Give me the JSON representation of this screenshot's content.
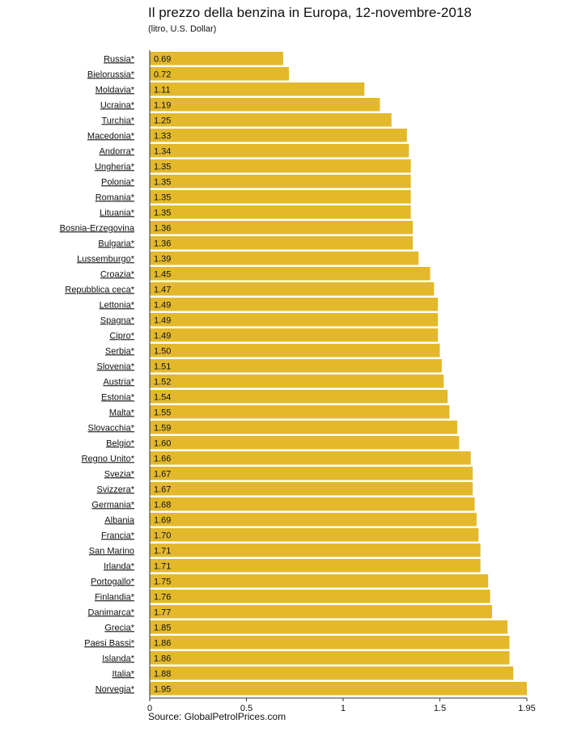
{
  "chart_data": {
    "type": "bar",
    "orientation": "horizontal",
    "title": "Il prezzo della benzina in Europa, 12-novembre-2018",
    "subtitle": "(litro, U.S. Dollar)",
    "source": "Source: GlobalPetrolPrices.com",
    "xlim": [
      0,
      1.95
    ],
    "ticks": [
      0,
      0.5,
      1,
      1.5,
      1.95
    ],
    "tick_labels": [
      "0",
      "0.5",
      "1",
      "1.5",
      "1.95"
    ],
    "bar_color": "#e3b92b",
    "categories": [
      "Russia*",
      "Bielorussia*",
      "Moldavia*",
      "Ucraina*",
      "Turchia*",
      "Macedonia*",
      "Andorra*",
      "Ungheria*",
      "Polonia*",
      "Romania*",
      "Lituania*",
      "Bosnia-Erzegovina ",
      "Bulgaria*",
      "Lussemburgo*",
      "Croazia*",
      "Repubblica ceca*",
      "Lettonia*",
      "Spagna*",
      "Cipro*",
      "Serbia*",
      "Slovenia*",
      "Austria*",
      "Estonia*",
      "Malta*",
      "Slovacchia*",
      "Belgio*",
      "Regno Unito*",
      "Svezia*",
      "Svizzera*",
      "Germania*",
      "Albania ",
      "Francia*",
      "San Marino ",
      "Irlanda*",
      "Portogallo*",
      "Finlandia*",
      "Danimarca*",
      "Grecia*",
      "Paesi Bassi*",
      "Islanda*",
      "Italia*",
      "Norvegia*"
    ],
    "values": [
      0.69,
      0.72,
      1.11,
      1.19,
      1.25,
      1.33,
      1.34,
      1.35,
      1.35,
      1.35,
      1.35,
      1.36,
      1.36,
      1.39,
      1.45,
      1.47,
      1.49,
      1.49,
      1.49,
      1.5,
      1.51,
      1.52,
      1.54,
      1.55,
      1.59,
      1.6,
      1.66,
      1.67,
      1.67,
      1.68,
      1.69,
      1.7,
      1.71,
      1.71,
      1.75,
      1.76,
      1.77,
      1.85,
      1.86,
      1.86,
      1.88,
      1.95
    ],
    "value_labels": [
      "0.69",
      "0.72",
      "1.11",
      "1.19",
      "1.25",
      "1.33",
      "1.34",
      "1.35",
      "1.35",
      "1.35",
      "1.35",
      "1.36",
      "1.36",
      "1.39",
      "1.45",
      "1.47",
      "1.49",
      "1.49",
      "1.49",
      "1.50",
      "1.51",
      "1.52",
      "1.54",
      "1.55",
      "1.59",
      "1.60",
      "1.66",
      "1.67",
      "1.67",
      "1.68",
      "1.69",
      "1.70",
      "1.71",
      "1.71",
      "1.75",
      "1.76",
      "1.77",
      "1.85",
      "1.86",
      "1.86",
      "1.88",
      "1.95"
    ]
  }
}
